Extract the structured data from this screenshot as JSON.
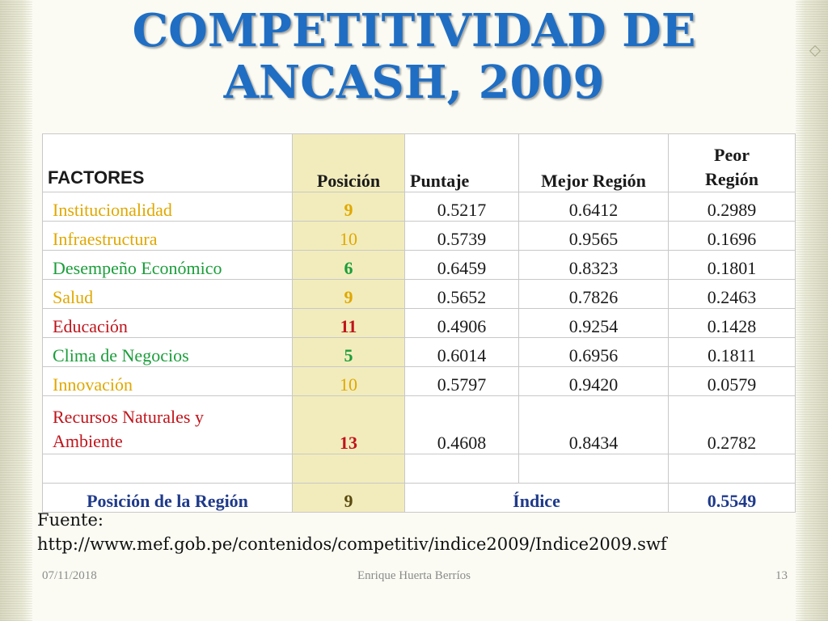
{
  "title": {
    "line1": "COMPETITIVIDAD DE",
    "line2": "ANCASH, 2009"
  },
  "table": {
    "headers": {
      "factores": "FACTORES",
      "posicion": "Posición",
      "puntaje": "Puntaje",
      "mejor": "Mejor Región",
      "peor_line1": "Peor",
      "peor_line2": "Región"
    },
    "rows": [
      {
        "factor": "Institucionalidad",
        "posicion": "9",
        "puntaje": "0.5217",
        "mejor": "0.6412",
        "peor": "0.2989"
      },
      {
        "factor": "Infraestructura",
        "posicion": "10",
        "puntaje": "0.5739",
        "mejor": "0.9565",
        "peor": "0.1696"
      },
      {
        "factor": "Desempeño Económico",
        "posicion": "6",
        "puntaje": "0.6459",
        "mejor": "0.8323",
        "peor": "0.1801"
      },
      {
        "factor": "Salud",
        "posicion": "9",
        "puntaje": "0.5652",
        "mejor": "0.7826",
        "peor": "0.2463"
      },
      {
        "factor": "Educación",
        "posicion": "11",
        "puntaje": "0.4906",
        "mejor": "0.9254",
        "peor": "0.1428"
      },
      {
        "factor": "Clima de Negocios",
        "posicion": "5",
        "puntaje": "0.6014",
        "mejor": "0.6956",
        "peor": "0.1811"
      },
      {
        "factor": "Innovación",
        "posicion": "10",
        "puntaje": "0.5797",
        "mejor": "0.9420",
        "peor": "0.0579"
      },
      {
        "factor_line1": "Recursos Naturales y",
        "factor_line2": "Ambiente",
        "posicion": "13",
        "puntaje": "0.4608",
        "mejor": "0.8434",
        "peor": "0.2782"
      }
    ],
    "footer": {
      "label": "Posición de la Región",
      "posicion": "9",
      "indice_label": "Índice",
      "indice_value": "0.5549"
    }
  },
  "source": {
    "label": "Fuente:",
    "url": "http://www.mef.gob.pe/contenidos/competitiv/indice2009/Indice2009.swf"
  },
  "slide_footer": {
    "date": "07/11/2018",
    "author": "Enrique Huerta Berríos",
    "page": "13"
  },
  "colors": {
    "title": "#1f6ec4",
    "yellow_factor": "#e0a800",
    "green_factor": "#1a9e3a",
    "red_factor": "#c0141b",
    "position_column_bg": "#f2ecbc",
    "footer_row_text": "#1f3a8a"
  }
}
